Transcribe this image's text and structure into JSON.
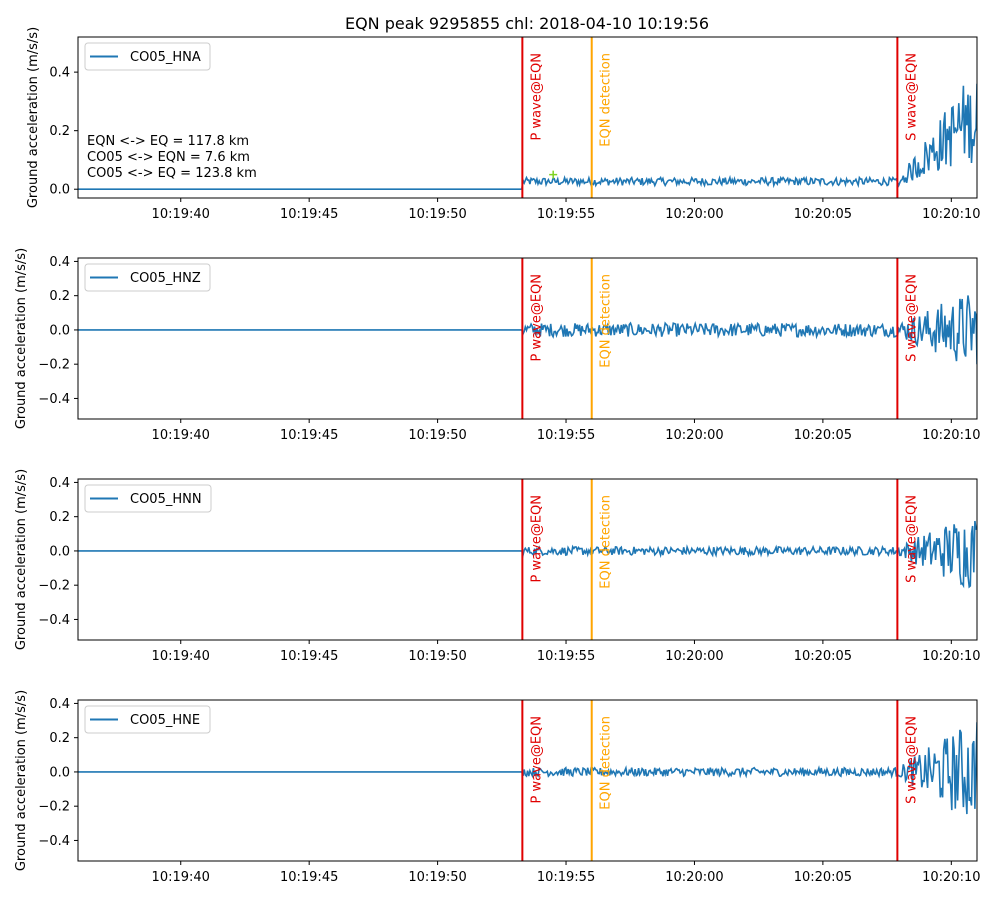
{
  "title": "EQN peak 9295855 chl: 2018-04-10 10:19:56",
  "chart_data": [
    {
      "type": "line",
      "series": [
        {
          "name": "CO05_HNA",
          "color": "#1f77b4"
        }
      ],
      "ylabel": "Ground acceleration (m/s/s)",
      "xticks": [
        "10:19:40",
        "10:19:45",
        "10:19:50",
        "10:19:55",
        "10:20:00",
        "10:20:05",
        "10:20:10"
      ],
      "yticks": [
        "0.0",
        "0.2",
        "0.4"
      ],
      "xlim_seconds": [
        36,
        71
      ],
      "ylim": [
        -0.03,
        0.52
      ],
      "tick_values_seconds": [
        40,
        45,
        50,
        55,
        60,
        65,
        70
      ],
      "ytick_values": [
        0.0,
        0.2,
        0.4
      ],
      "trace": {
        "t_quiet_end": 53.3,
        "kind": "abs",
        "pre_amp": 0.025,
        "post_amp": 0.03,
        "s_amp": 0.35,
        "y_at_s_end": 0.36
      },
      "marker": {
        "t": 54.5,
        "y": 0.05,
        "color": "#7fd320"
      },
      "annotations": [
        "EQN <-> EQ = 117.8 km",
        "CO05 <-> EQN = 7.6 km",
        "CO05 <-> EQ = 123.8 km"
      ],
      "vlines": [
        {
          "t": 53.3,
          "label": "P wave@EQN",
          "color": "#e00000"
        },
        {
          "t": 56.0,
          "label": "EQN detection",
          "color": "#ffa500"
        },
        {
          "t": 67.9,
          "label": "S wave@EQN",
          "color": "#e00000"
        }
      ]
    },
    {
      "type": "line",
      "series": [
        {
          "name": "CO05_HNZ",
          "color": "#1f77b4"
        }
      ],
      "ylabel": "Ground acceleration (m/s/s)",
      "xticks": [
        "10:19:40",
        "10:19:45",
        "10:19:50",
        "10:19:55",
        "10:20:00",
        "10:20:05",
        "10:20:10"
      ],
      "yticks": [
        "0.4",
        "0.2",
        "0.0",
        "−0.2",
        "−0.4"
      ],
      "xlim_seconds": [
        36,
        71
      ],
      "ylim": [
        -0.52,
        0.42
      ],
      "tick_values_seconds": [
        40,
        45,
        50,
        55,
        60,
        65,
        70
      ],
      "ytick_values": [
        0.4,
        0.2,
        0.0,
        -0.2,
        -0.4
      ],
      "trace": {
        "t_quiet_end": 53.3,
        "kind": "signed",
        "pre_amp": 0.04,
        "post_amp": 0.04,
        "s_amp": 0.22,
        "y_at_s_end": -0.2
      },
      "vlines": [
        {
          "t": 53.3,
          "label": "P wave@EQN",
          "color": "#e00000"
        },
        {
          "t": 56.0,
          "label": "EQN detection",
          "color": "#ffa500"
        },
        {
          "t": 67.9,
          "label": "S wave@EQN",
          "color": "#e00000"
        }
      ]
    },
    {
      "type": "line",
      "series": [
        {
          "name": "CO05_HNN",
          "color": "#1f77b4"
        }
      ],
      "ylabel": "Ground acceleration (m/s/s)",
      "xticks": [
        "10:19:40",
        "10:19:45",
        "10:19:50",
        "10:19:55",
        "10:20:00",
        "10:20:05",
        "10:20:10"
      ],
      "yticks": [
        "0.4",
        "0.2",
        "0.0",
        "−0.2",
        "−0.4"
      ],
      "xlim_seconds": [
        36,
        71
      ],
      "ylim": [
        -0.52,
        0.42
      ],
      "tick_values_seconds": [
        40,
        45,
        50,
        55,
        60,
        65,
        70
      ],
      "ytick_values": [
        0.4,
        0.2,
        0.0,
        -0.2,
        -0.4
      ],
      "trace": {
        "t_quiet_end": 53.3,
        "kind": "signed",
        "pre_amp": 0.025,
        "post_amp": 0.025,
        "s_amp": 0.22,
        "y_at_s_end": 0.14
      },
      "vlines": [
        {
          "t": 53.3,
          "label": "P wave@EQN",
          "color": "#e00000"
        },
        {
          "t": 56.0,
          "label": "EQN detection",
          "color": "#ffa500"
        },
        {
          "t": 67.9,
          "label": "S wave@EQN",
          "color": "#e00000"
        }
      ]
    },
    {
      "type": "line",
      "series": [
        {
          "name": "CO05_HNE",
          "color": "#1f77b4"
        }
      ],
      "ylabel": "Ground acceleration (m/s/s)",
      "xticks": [
        "10:19:40",
        "10:19:45",
        "10:19:50",
        "10:19:55",
        "10:20:00",
        "10:20:05",
        "10:20:10"
      ],
      "yticks": [
        "0.4",
        "0.2",
        "0.0",
        "−0.2",
        "−0.4"
      ],
      "xlim_seconds": [
        36,
        71
      ],
      "ylim": [
        -0.52,
        0.42
      ],
      "tick_values_seconds": [
        40,
        45,
        50,
        55,
        60,
        65,
        70
      ],
      "ytick_values": [
        0.4,
        0.2,
        0.0,
        -0.2,
        -0.4
      ],
      "trace": {
        "t_quiet_end": 53.3,
        "kind": "signed",
        "pre_amp": 0.025,
        "post_amp": 0.025,
        "s_amp": 0.28,
        "y_at_s_end": 0.29
      },
      "vlines": [
        {
          "t": 53.3,
          "label": "P wave@EQN",
          "color": "#e00000"
        },
        {
          "t": 56.0,
          "label": "EQN detection",
          "color": "#ffa500"
        },
        {
          "t": 67.9,
          "label": "S wave@EQN",
          "color": "#e00000"
        }
      ]
    }
  ]
}
